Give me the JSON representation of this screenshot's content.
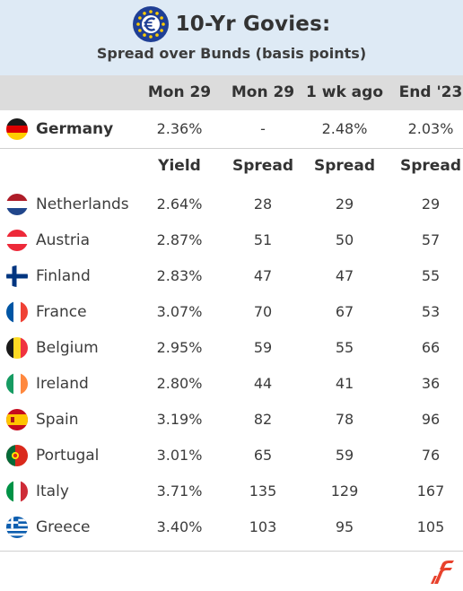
{
  "header": {
    "title": "10-Yr Govies:",
    "subtitle": "Spread over Bunds (basis points)",
    "icon": "euro-icon"
  },
  "columns": [
    "Mon 29",
    "Mon 29",
    "1 wk ago",
    "End '23"
  ],
  "subcolumns": [
    "Yield",
    "Spread",
    "Spread",
    "Spread"
  ],
  "benchmark": {
    "country": "Germany",
    "flag": "germany-flag",
    "values": [
      "2.36%",
      "-",
      "2.48%",
      "2.03%"
    ]
  },
  "rows": [
    {
      "country": "Netherlands",
      "flag": "netherlands-flag",
      "values": [
        "2.64%",
        "28",
        "29",
        "29"
      ]
    },
    {
      "country": "Austria",
      "flag": "austria-flag",
      "values": [
        "2.87%",
        "51",
        "50",
        "57"
      ]
    },
    {
      "country": "Finland",
      "flag": "finland-flag",
      "values": [
        "2.83%",
        "47",
        "47",
        "55"
      ]
    },
    {
      "country": "France",
      "flag": "france-flag",
      "values": [
        "3.07%",
        "70",
        "67",
        "53"
      ]
    },
    {
      "country": "Belgium",
      "flag": "belgium-flag",
      "values": [
        "2.95%",
        "59",
        "55",
        "66"
      ]
    },
    {
      "country": "Ireland",
      "flag": "ireland-flag",
      "values": [
        "2.80%",
        "44",
        "41",
        "36"
      ]
    },
    {
      "country": "Spain",
      "flag": "spain-flag",
      "values": [
        "3.19%",
        "82",
        "78",
        "96"
      ]
    },
    {
      "country": "Portugal",
      "flag": "portugal-flag",
      "values": [
        "3.01%",
        "65",
        "59",
        "76"
      ]
    },
    {
      "country": "Italy",
      "flag": "italy-flag",
      "values": [
        "3.71%",
        "135",
        "129",
        "167"
      ]
    },
    {
      "country": "Greece",
      "flag": "greece-flag",
      "values": [
        "3.40%",
        "103",
        "95",
        "105"
      ]
    }
  ],
  "colors": {
    "header_bg": "#deeaf5",
    "colhead_bg": "#dcdcdc",
    "text": "#3c3c3c",
    "logo": "#e8412c"
  },
  "chart_data": {
    "type": "table",
    "title": "10-Yr Govies:",
    "subtitle": "Spread over Bunds (basis points)",
    "columns": [
      "Mon 29 Yield",
      "Mon 29 Spread",
      "1 wk ago Spread",
      "End '23 Spread"
    ],
    "benchmark": {
      "country": "Germany",
      "yield": 2.36,
      "one_week_ago": 2.48,
      "end_2023": 2.03
    },
    "rows": [
      {
        "country": "Netherlands",
        "yield": 2.64,
        "spread": 28,
        "spread_1wk": 29,
        "spread_end23": 29
      },
      {
        "country": "Austria",
        "yield": 2.87,
        "spread": 51,
        "spread_1wk": 50,
        "spread_end23": 57
      },
      {
        "country": "Finland",
        "yield": 2.83,
        "spread": 47,
        "spread_1wk": 47,
        "spread_end23": 55
      },
      {
        "country": "France",
        "yield": 3.07,
        "spread": 70,
        "spread_1wk": 67,
        "spread_end23": 53
      },
      {
        "country": "Belgium",
        "yield": 2.95,
        "spread": 59,
        "spread_1wk": 55,
        "spread_end23": 66
      },
      {
        "country": "Ireland",
        "yield": 2.8,
        "spread": 44,
        "spread_1wk": 41,
        "spread_end23": 36
      },
      {
        "country": "Spain",
        "yield": 3.19,
        "spread": 82,
        "spread_1wk": 78,
        "spread_end23": 96
      },
      {
        "country": "Portugal",
        "yield": 3.01,
        "spread": 65,
        "spread_1wk": 59,
        "spread_end23": 76
      },
      {
        "country": "Italy",
        "yield": 3.71,
        "spread": 135,
        "spread_1wk": 129,
        "spread_end23": 167
      },
      {
        "country": "Greece",
        "yield": 3.4,
        "spread": 103,
        "spread_1wk": 95,
        "spread_end23": 105
      }
    ]
  }
}
